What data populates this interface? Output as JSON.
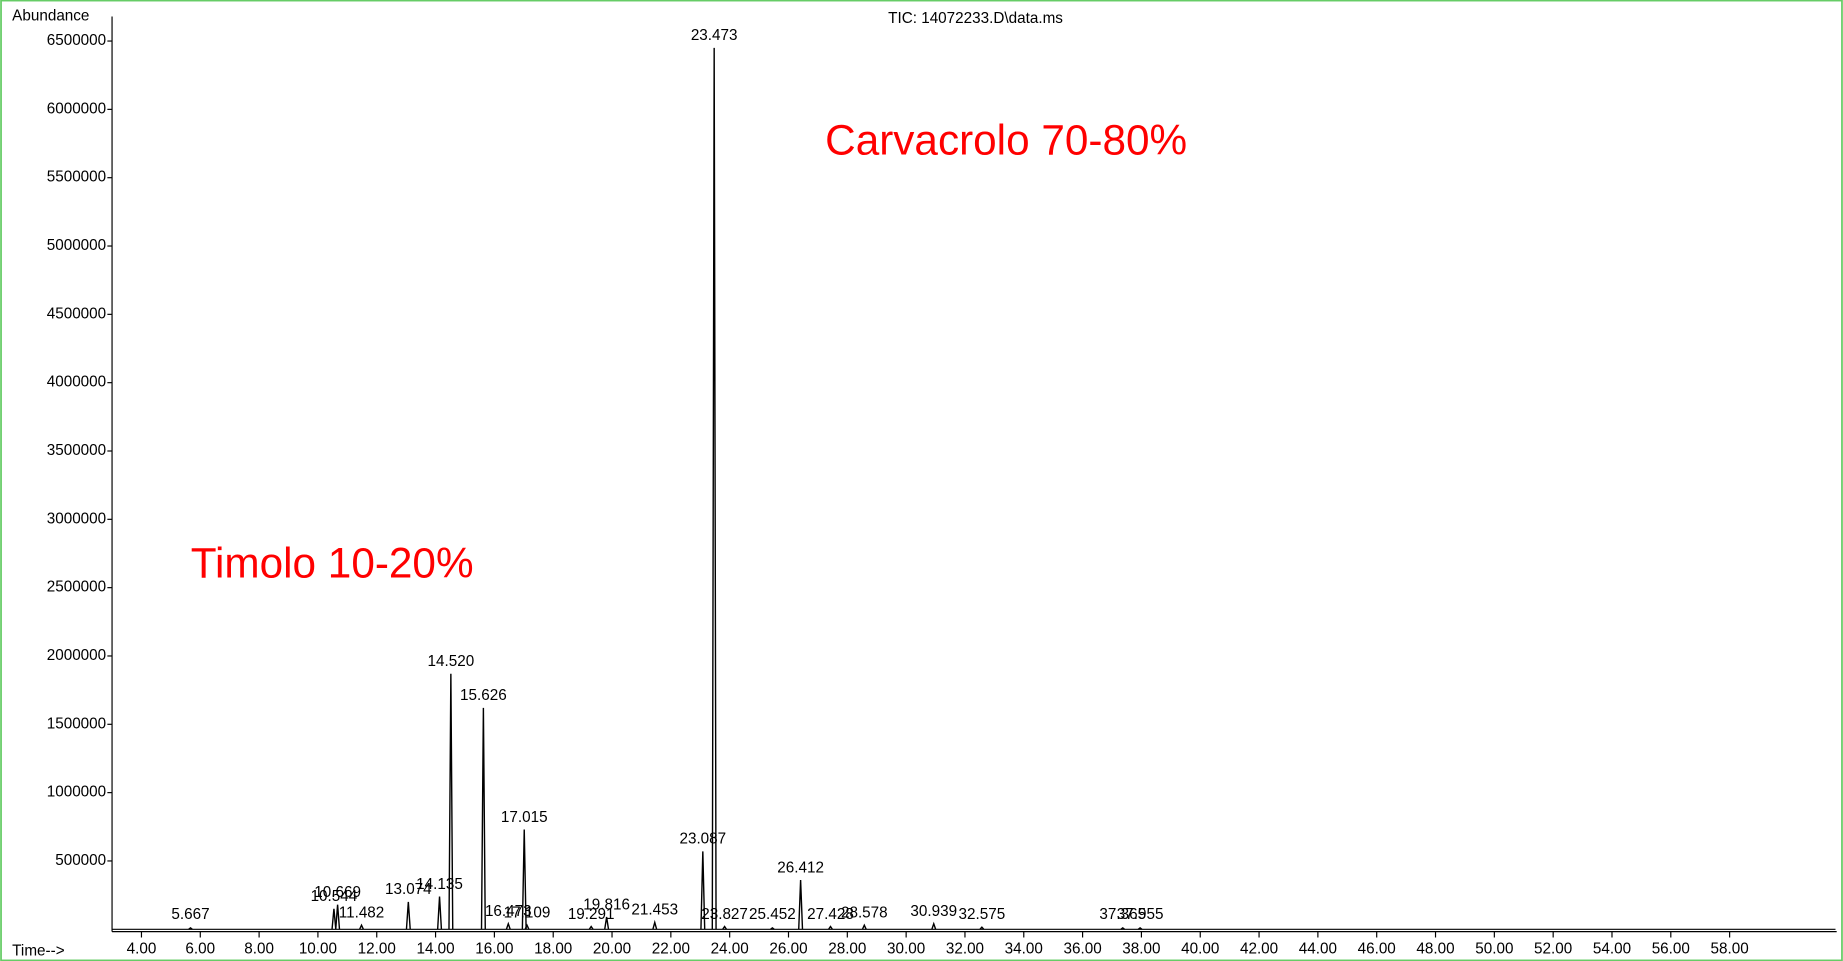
{
  "chart_data": {
    "type": "chromatogram",
    "title": "TIC: 14072233.D\\data.ms",
    "ylabel": "Abundance",
    "xlabel": "Time-->",
    "annotations": [
      "Carvacrolo 70-80%",
      "Timolo 10-20%"
    ],
    "color": "#000000",
    "annotation_color": "#ff0000",
    "xlim": [
      3.0,
      61.6
    ],
    "ylim": [
      0,
      6680000
    ],
    "yticks": [
      500000,
      1000000,
      1500000,
      2000000,
      2500000,
      3000000,
      3500000,
      4000000,
      4500000,
      5000000,
      5500000,
      6000000,
      6500000
    ],
    "xticks": [
      {
        "value": 4,
        "label": "4.00"
      },
      {
        "value": 6,
        "label": "6.00"
      },
      {
        "value": 8,
        "label": "8.00"
      },
      {
        "value": 10,
        "label": "10.00"
      },
      {
        "value": 12,
        "label": "12.00"
      },
      {
        "value": 14,
        "label": "14.00"
      },
      {
        "value": 16,
        "label": "16.00"
      },
      {
        "value": 18,
        "label": "18.00"
      },
      {
        "value": 20,
        "label": "20.00"
      },
      {
        "value": 22,
        "label": "22.00"
      },
      {
        "value": 24,
        "label": "24.00"
      },
      {
        "value": 26,
        "label": "26.00"
      },
      {
        "value": 28,
        "label": "28.00"
      },
      {
        "value": 30,
        "label": "30.00"
      },
      {
        "value": 32,
        "label": "32.00"
      },
      {
        "value": 34,
        "label": "34.00"
      },
      {
        "value": 36,
        "label": "36.00"
      },
      {
        "value": 38,
        "label": "38.00"
      },
      {
        "value": 40,
        "label": "40.00"
      },
      {
        "value": 42,
        "label": "42.00"
      },
      {
        "value": 44,
        "label": "44.00"
      },
      {
        "value": 46,
        "label": "46.00"
      },
      {
        "value": 48,
        "label": "48.00"
      },
      {
        "value": 50,
        "label": "50.00"
      },
      {
        "value": 52,
        "label": "52.00"
      },
      {
        "value": 54,
        "label": "54.00"
      },
      {
        "value": 56,
        "label": "56.00"
      },
      {
        "value": 58,
        "label": "58.00"
      }
    ],
    "x": [
      5.667,
      10.544,
      10.669,
      11.482,
      13.074,
      14.135,
      14.52,
      15.626,
      16.473,
      17.015,
      17.109,
      19.291,
      19.816,
      21.453,
      23.087,
      23.473,
      23.827,
      25.452,
      26.412,
      27.428,
      28.578,
      30.939,
      32.575,
      37.365,
      37.955
    ],
    "labels": [
      "5.667",
      "10.544",
      "10.669",
      "11.482",
      "13.074",
      "14.135",
      "14.520",
      "15.626",
      "16.473",
      "17.015",
      "17.109",
      "19.291",
      "19.816",
      "21.453",
      "23.087",
      "23.473",
      "23.827",
      "25.452",
      "26.412",
      "27.428",
      "28.578",
      "30.939",
      "32.575",
      "37.365",
      "37.955"
    ],
    "values": [
      10000,
      150000,
      180000,
      30000,
      200000,
      240000,
      1870000,
      1620000,
      40000,
      730000,
      30000,
      20000,
      90000,
      50000,
      570000,
      6450000,
      20000,
      10000,
      360000,
      20000,
      30000,
      40000,
      15000,
      10000,
      10000
    ]
  }
}
